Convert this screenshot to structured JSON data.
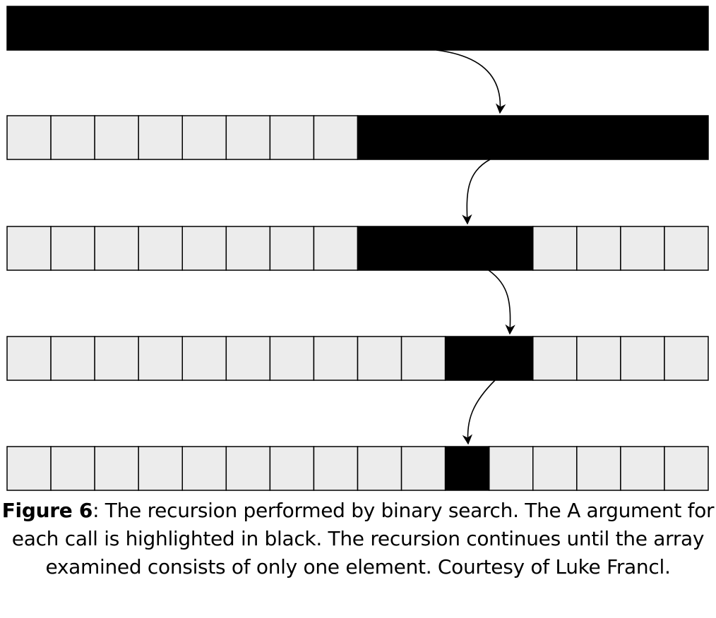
{
  "diagram": {
    "array_length": 16,
    "rows": [
      {
        "highlight_start": 0,
        "highlight_end": 16
      },
      {
        "highlight_start": 8,
        "highlight_end": 16
      },
      {
        "highlight_start": 8,
        "highlight_end": 12
      },
      {
        "highlight_start": 10,
        "highlight_end": 12
      },
      {
        "highlight_start": 10,
        "highlight_end": 11
      }
    ],
    "colors": {
      "cell_fill": "#ececec",
      "highlight_fill": "#000000",
      "stroke": "#000000"
    }
  },
  "caption": {
    "label": "Figure 6",
    "text": ": The recursion performed by binary search. The A argument for each call is highlighted in black. The recursion continues until the array examined consists of only one element. Courtesy of Luke Francl."
  }
}
